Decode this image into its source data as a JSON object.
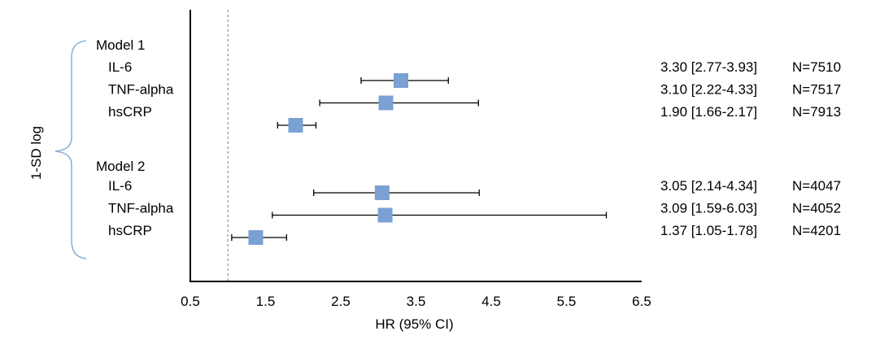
{
  "chart_data": {
    "type": "forest",
    "xlabel": "HR (95% CI)",
    "ylabel": "1-SD log",
    "xlim": [
      0.5,
      6.5
    ],
    "xticks": [
      "0.5",
      "1.5",
      "2.5",
      "3.5",
      "4.5",
      "5.5",
      "6.5"
    ],
    "reference_line": 1.0,
    "marker_color": "#7aa0d4",
    "groups": [
      {
        "name": "Model 1",
        "rows": [
          {
            "label": "IL-6",
            "hr": 3.3,
            "lo": 2.77,
            "hi": 3.93,
            "ci_text": "3.30 [2.77-3.93]",
            "n_text": "N=7510"
          },
          {
            "label": "TNF-alpha",
            "hr": 3.1,
            "lo": 2.22,
            "hi": 4.33,
            "ci_text": "3.10 [2.22-4.33]",
            "n_text": "N=7517"
          },
          {
            "label": "hsCRP",
            "hr": 1.9,
            "lo": 1.66,
            "hi": 2.17,
            "ci_text": "1.90 [1.66-2.17]",
            "n_text": "N=7913"
          }
        ]
      },
      {
        "name": "Model 2",
        "rows": [
          {
            "label": "IL-6",
            "hr": 3.05,
            "lo": 2.14,
            "hi": 4.34,
            "ci_text": "3.05 [2.14-4.34]",
            "n_text": "N=4047"
          },
          {
            "label": "TNF-alpha",
            "hr": 3.09,
            "lo": 1.59,
            "hi": 6.03,
            "ci_text": "3.09 [1.59-6.03]",
            "n_text": "N=4052"
          },
          {
            "label": "hsCRP",
            "hr": 1.37,
            "lo": 1.05,
            "hi": 1.78,
            "ci_text": "1.37 [1.05-1.78]",
            "n_text": "N=4201"
          }
        ]
      }
    ]
  }
}
